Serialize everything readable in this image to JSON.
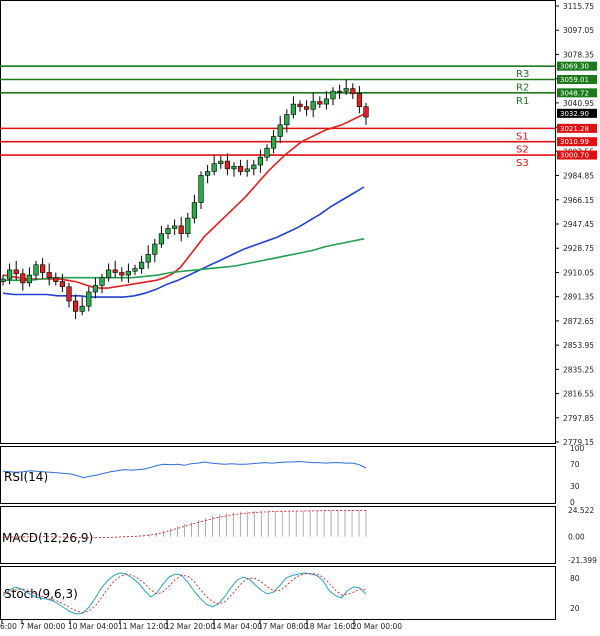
{
  "chart_data": [
    {
      "type": "candlestick",
      "panel": "price",
      "ylim": [
        2770,
        3120
      ],
      "y_ticks": [
        "3115.75",
        "3097.05",
        "3078.35",
        "3059.65",
        "3040.95",
        "3022.25",
        "3003.55",
        "2984.85",
        "2966.15",
        "2947.45",
        "2928.75",
        "2910.05",
        "2891.35",
        "2872.65",
        "2853.95",
        "2835.25",
        "2816.55",
        "2797.85",
        "2779.15"
      ],
      "x_ticks": [
        "6:00",
        "7 Mar 00:00",
        "10 Mar 04:00",
        "11 Mar 12:00",
        "12 Mar 20:00",
        "14 Mar 04:00",
        "17 Mar 08:00",
        "18 Mar 16:00",
        "20 Mar 00:00"
      ],
      "candles_close": [
        2905,
        2912,
        2909,
        2902,
        2908,
        2916,
        2910,
        2906,
        2903,
        2899,
        2888,
        2880,
        2884,
        2895,
        2900,
        2906,
        2912,
        2910,
        2908,
        2911,
        2913,
        2918,
        2924,
        2932,
        2940,
        2944,
        2946,
        2940,
        2952,
        2964,
        2985,
        2988,
        2994,
        2996,
        2990,
        2992,
        2988,
        2990,
        2993,
        2999,
        3006,
        3015,
        3024,
        3032,
        3040,
        3038,
        3036,
        3042,
        3040,
        3044,
        3050,
        3050,
        3052,
        3048,
        3038,
        3030
      ],
      "moving_averages": [
        {
          "color": "#e02020",
          "values": [
            2908,
            2907,
            2906,
            2905,
            2905,
            2905,
            2905,
            2905,
            2904,
            2903,
            2901,
            2899,
            2898,
            2898,
            2899,
            2900,
            2901,
            2902,
            2903,
            2904,
            2906,
            2909,
            2914,
            2922,
            2930,
            2938,
            2944,
            2950,
            2956,
            2962,
            2968,
            2975,
            2982,
            2989,
            2995,
            3001,
            3006,
            3011,
            3014,
            3017,
            3020,
            3022,
            3024,
            3027,
            3030,
            3033
          ]
        },
        {
          "color": "#2040d0",
          "values": [
            2894,
            2893,
            2893,
            2893,
            2893,
            2892,
            2892,
            2892,
            2891,
            2891,
            2891,
            2891,
            2892,
            2894,
            2897,
            2901,
            2904,
            2908,
            2912,
            2916,
            2920,
            2924,
            2928,
            2931,
            2934,
            2937,
            2941,
            2945,
            2950,
            2955,
            2961,
            2966,
            2971,
            2976
          ]
        },
        {
          "color": "#20a050",
          "values": [
            2904,
            2904,
            2904,
            2905,
            2906,
            2906,
            2906,
            2906,
            2906,
            2906,
            2906,
            2907,
            2908,
            2910,
            2911,
            2912,
            2913,
            2914,
            2915,
            2917,
            2919,
            2921,
            2923,
            2925,
            2927,
            2930,
            2932,
            2934,
            2936
          ]
        }
      ],
      "levels": [
        {
          "label": "R3",
          "value": "3069.30",
          "color": "#1a7a1a"
        },
        {
          "label": "R2",
          "value": "3059.01",
          "color": "#1a7a1a"
        },
        {
          "label": "R1",
          "value": "3048.72",
          "color": "#1a7a1a"
        },
        {
          "label": "S1",
          "value": "3021.28",
          "color": "#e01010"
        },
        {
          "label": "S2",
          "value": "3010.99",
          "color": "#e01010"
        },
        {
          "label": "S3",
          "value": "3000.70",
          "color": "#e01010"
        }
      ],
      "current_price": "3032.90"
    },
    {
      "type": "line",
      "panel": "rsi",
      "title": "RSI(14)",
      "y_ticks": [
        "100",
        "70",
        "30",
        "0"
      ],
      "ylim": [
        0,
        100
      ],
      "values": [
        57,
        56,
        55,
        56,
        58,
        57,
        56,
        55,
        54,
        53,
        52,
        49,
        45,
        48,
        50,
        53,
        56,
        58,
        60,
        59,
        60,
        61,
        64,
        68,
        70,
        69,
        70,
        68,
        71,
        72,
        74,
        72,
        71,
        70,
        71,
        70,
        70,
        71,
        72,
        73,
        72,
        73,
        74,
        74,
        75,
        74,
        73,
        73,
        72,
        73,
        73,
        72,
        72,
        69,
        63
      ]
    },
    {
      "type": "bar",
      "panel": "macd",
      "title": "MACD(12,26,9)",
      "y_ticks": [
        "24.522",
        "0.00",
        "-21.399"
      ],
      "ylim": [
        -21.399,
        24.522
      ],
      "histogram": [
        -0.5,
        -0.3,
        -0.2,
        0.0,
        0.2,
        0.1,
        0.0,
        -0.2,
        -0.4,
        -0.6,
        -0.9,
        -1.2,
        -1.3,
        -1.1,
        -0.8,
        -0.5,
        -0.2,
        0.1,
        0.3,
        0.6,
        1.0,
        2.0,
        3.5,
        5.5,
        7.5,
        9.5,
        11.5,
        13.5,
        15.5,
        17.5,
        19.0,
        20.5,
        21.5,
        22.5,
        23.0,
        23.3,
        23.5,
        23.6,
        23.6,
        23.5,
        23.5,
        23.6,
        23.7,
        23.8,
        24.0,
        24.2,
        24.3,
        24.4,
        24.5,
        24.5,
        24.4,
        24.3,
        24.2
      ],
      "signal": [
        -0.4,
        -0.4,
        -0.3,
        -0.2,
        -0.1,
        0.0,
        0.0,
        -0.1,
        -0.2,
        -0.4,
        -0.6,
        -0.8,
        -1.0,
        -1.0,
        -0.9,
        -0.7,
        -0.5,
        -0.2,
        0.1,
        0.4,
        0.8,
        1.5,
        2.5,
        4.0,
        5.8,
        7.6,
        9.5,
        11.4,
        13.2,
        15.0,
        16.6,
        18.0,
        19.2,
        20.2,
        21.0,
        21.7,
        22.2,
        22.6,
        22.9,
        23.1,
        23.3,
        23.4,
        23.5,
        23.6,
        23.7,
        23.8,
        23.9,
        24.0,
        24.1,
        24.2,
        24.2,
        24.2,
        24.1
      ]
    },
    {
      "type": "line",
      "panel": "stochastic",
      "title": "Stoch(9,6,3)",
      "y_ticks": [
        "80",
        "20"
      ],
      "ylim": [
        0,
        100
      ],
      "k": [
        45,
        55,
        62,
        58,
        50,
        44,
        40,
        38,
        35,
        28,
        20,
        12,
        8,
        10,
        22,
        40,
        60,
        75,
        85,
        90,
        88,
        80,
        70,
        55,
        42,
        50,
        68,
        82,
        88,
        86,
        72,
        55,
        40,
        28,
        22,
        28,
        42,
        60,
        75,
        82,
        78,
        66,
        55,
        48,
        52,
        65,
        80,
        85,
        88,
        90,
        88,
        85,
        75,
        55,
        45,
        40,
        55,
        62,
        60,
        48
      ],
      "d": [
        50,
        52,
        56,
        58,
        56,
        50,
        45,
        40,
        37,
        33,
        27,
        20,
        14,
        11,
        14,
        24,
        40,
        58,
        73,
        83,
        87,
        86,
        79,
        69,
        56,
        48,
        52,
        64,
        77,
        85,
        84,
        74,
        58,
        44,
        33,
        28,
        32,
        44,
        59,
        72,
        80,
        79,
        72,
        62,
        54,
        55,
        64,
        76,
        84,
        88,
        89,
        88,
        82,
        70,
        56,
        46,
        47,
        52,
        58,
        56
      ]
    }
  ]
}
